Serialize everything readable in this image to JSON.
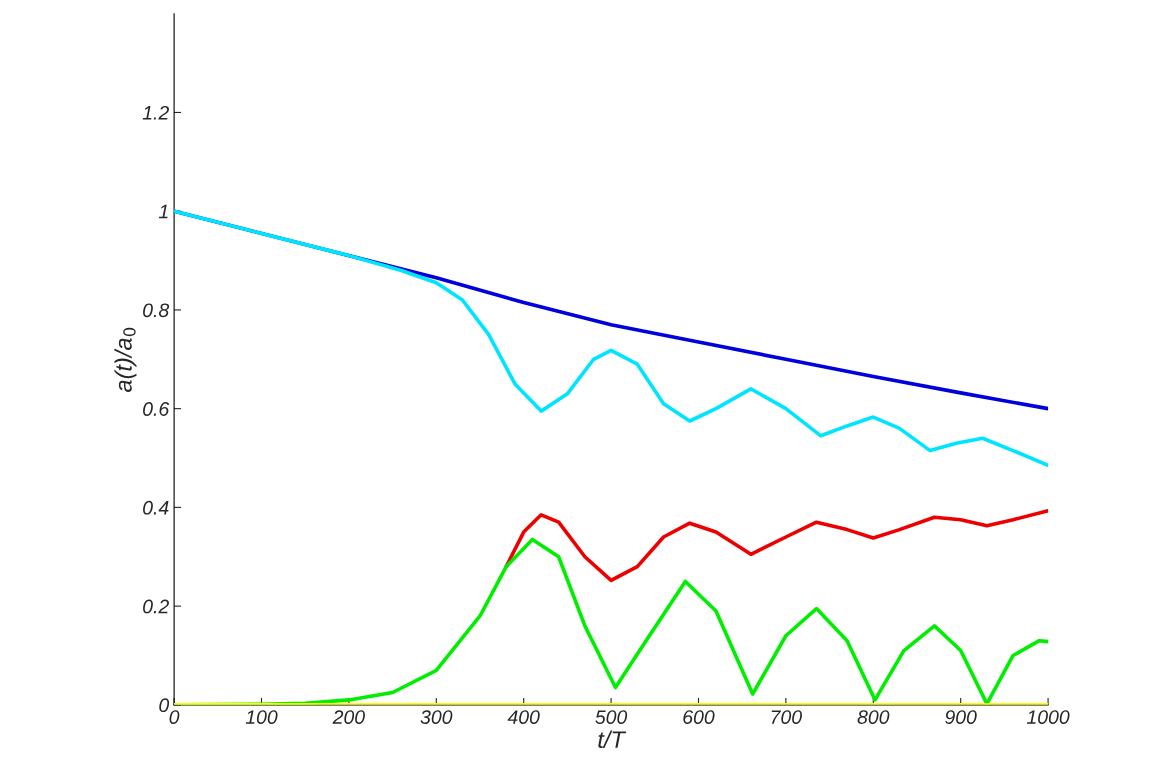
{
  "chart_data": {
    "type": "line",
    "xlabel": "t/T",
    "ylabel": "a(t)/a$_{0}$",
    "xlim": [
      0,
      1000
    ],
    "ylim": [
      0,
      1.4
    ],
    "xticks": [
      0,
      100,
      200,
      300,
      400,
      500,
      600,
      700,
      800,
      900,
      1000
    ],
    "yticks": [
      0,
      0.2,
      0.4,
      0.6,
      0.8,
      1,
      1.2
    ],
    "grid": false,
    "legend": false,
    "marker": "none",
    "line_style": "solid",
    "series": [
      {
        "color": "#ee0000",
        "x": [
          380,
          400,
          420,
          440,
          470,
          500,
          530,
          560,
          590,
          620,
          660,
          700,
          735,
          770,
          800,
          830,
          870,
          900,
          930,
          960,
          1000
        ],
        "values": [
          0.28,
          0.35,
          0.385,
          0.37,
          0.3,
          0.252,
          0.28,
          0.34,
          0.368,
          0.35,
          0.305,
          0.34,
          0.37,
          0.355,
          0.338,
          0.355,
          0.38,
          0.375,
          0.363,
          0.375,
          0.393
        ]
      },
      {
        "color": "#00ee00",
        "x": [
          0,
          100,
          150,
          200,
          250,
          300,
          350,
          380,
          410,
          440,
          470,
          505,
          540,
          585,
          620,
          662,
          700,
          735,
          770,
          802,
          835,
          870,
          900,
          930,
          960,
          990,
          1000
        ],
        "values": [
          0,
          0.001,
          0.003,
          0.01,
          0.025,
          0.07,
          0.18,
          0.28,
          0.335,
          0.3,
          0.16,
          0.035,
          0.13,
          0.25,
          0.19,
          0.022,
          0.14,
          0.195,
          0.13,
          0.01,
          0.11,
          0.16,
          0.11,
          0.002,
          0.1,
          0.13,
          0.128
        ]
      },
      {
        "color": "#0000dd",
        "x": [
          0,
          300,
          400,
          500,
          600,
          700,
          800,
          900,
          1000
        ],
        "values": [
          1.0,
          0.865,
          0.815,
          0.77,
          0.735,
          0.7,
          0.665,
          0.632,
          0.6
        ]
      },
      {
        "color": "#00e5ff",
        "x": [
          0,
          100,
          200,
          260,
          300,
          330,
          360,
          390,
          420,
          450,
          480,
          500,
          530,
          560,
          590,
          620,
          660,
          700,
          740,
          770,
          800,
          830,
          865,
          895,
          925,
          960,
          1000
        ],
        "values": [
          1.0,
          0.955,
          0.91,
          0.88,
          0.855,
          0.82,
          0.75,
          0.65,
          0.595,
          0.63,
          0.7,
          0.718,
          0.69,
          0.61,
          0.575,
          0.6,
          0.64,
          0.6,
          0.545,
          0.565,
          0.583,
          0.56,
          0.515,
          0.53,
          0.54,
          0.515,
          0.485
        ]
      },
      {
        "color": "#ffff00",
        "x": [
          0,
          1000
        ],
        "values": [
          0,
          0
        ]
      }
    ]
  }
}
